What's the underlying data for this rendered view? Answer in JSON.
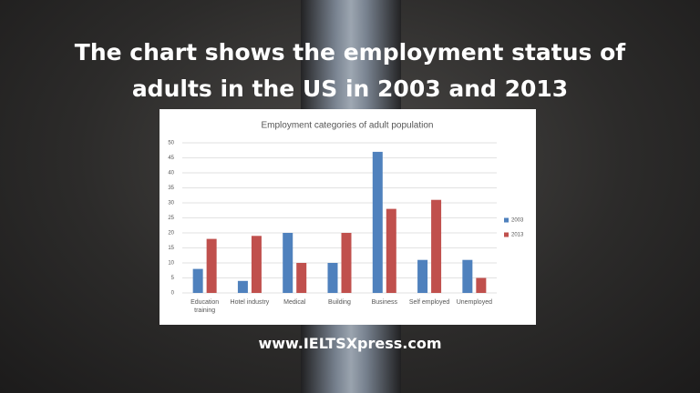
{
  "header": {
    "title": "The chart shows the employment status of adults in the US in 2003 and 2013"
  },
  "chart_data": {
    "type": "bar",
    "title": "Employment categories of adult population",
    "categories": [
      "Education training",
      "Hotel industry",
      "Medical",
      "Building",
      "Business",
      "Self employed",
      "Unemployed"
    ],
    "series": [
      {
        "name": "2003",
        "color": "#4f81bd",
        "values": [
          8,
          4,
          20,
          10,
          47,
          11,
          11
        ]
      },
      {
        "name": "2013",
        "color": "#c0504d",
        "values": [
          18,
          19,
          10,
          20,
          28,
          31,
          5
        ]
      }
    ],
    "ylim": [
      0,
      50
    ],
    "yticks": [
      0,
      5,
      10,
      15,
      20,
      25,
      30,
      35,
      40,
      45,
      50
    ],
    "grid": true,
    "legend": "right"
  },
  "footer": {
    "url": "www.IELTSXpress.com"
  }
}
